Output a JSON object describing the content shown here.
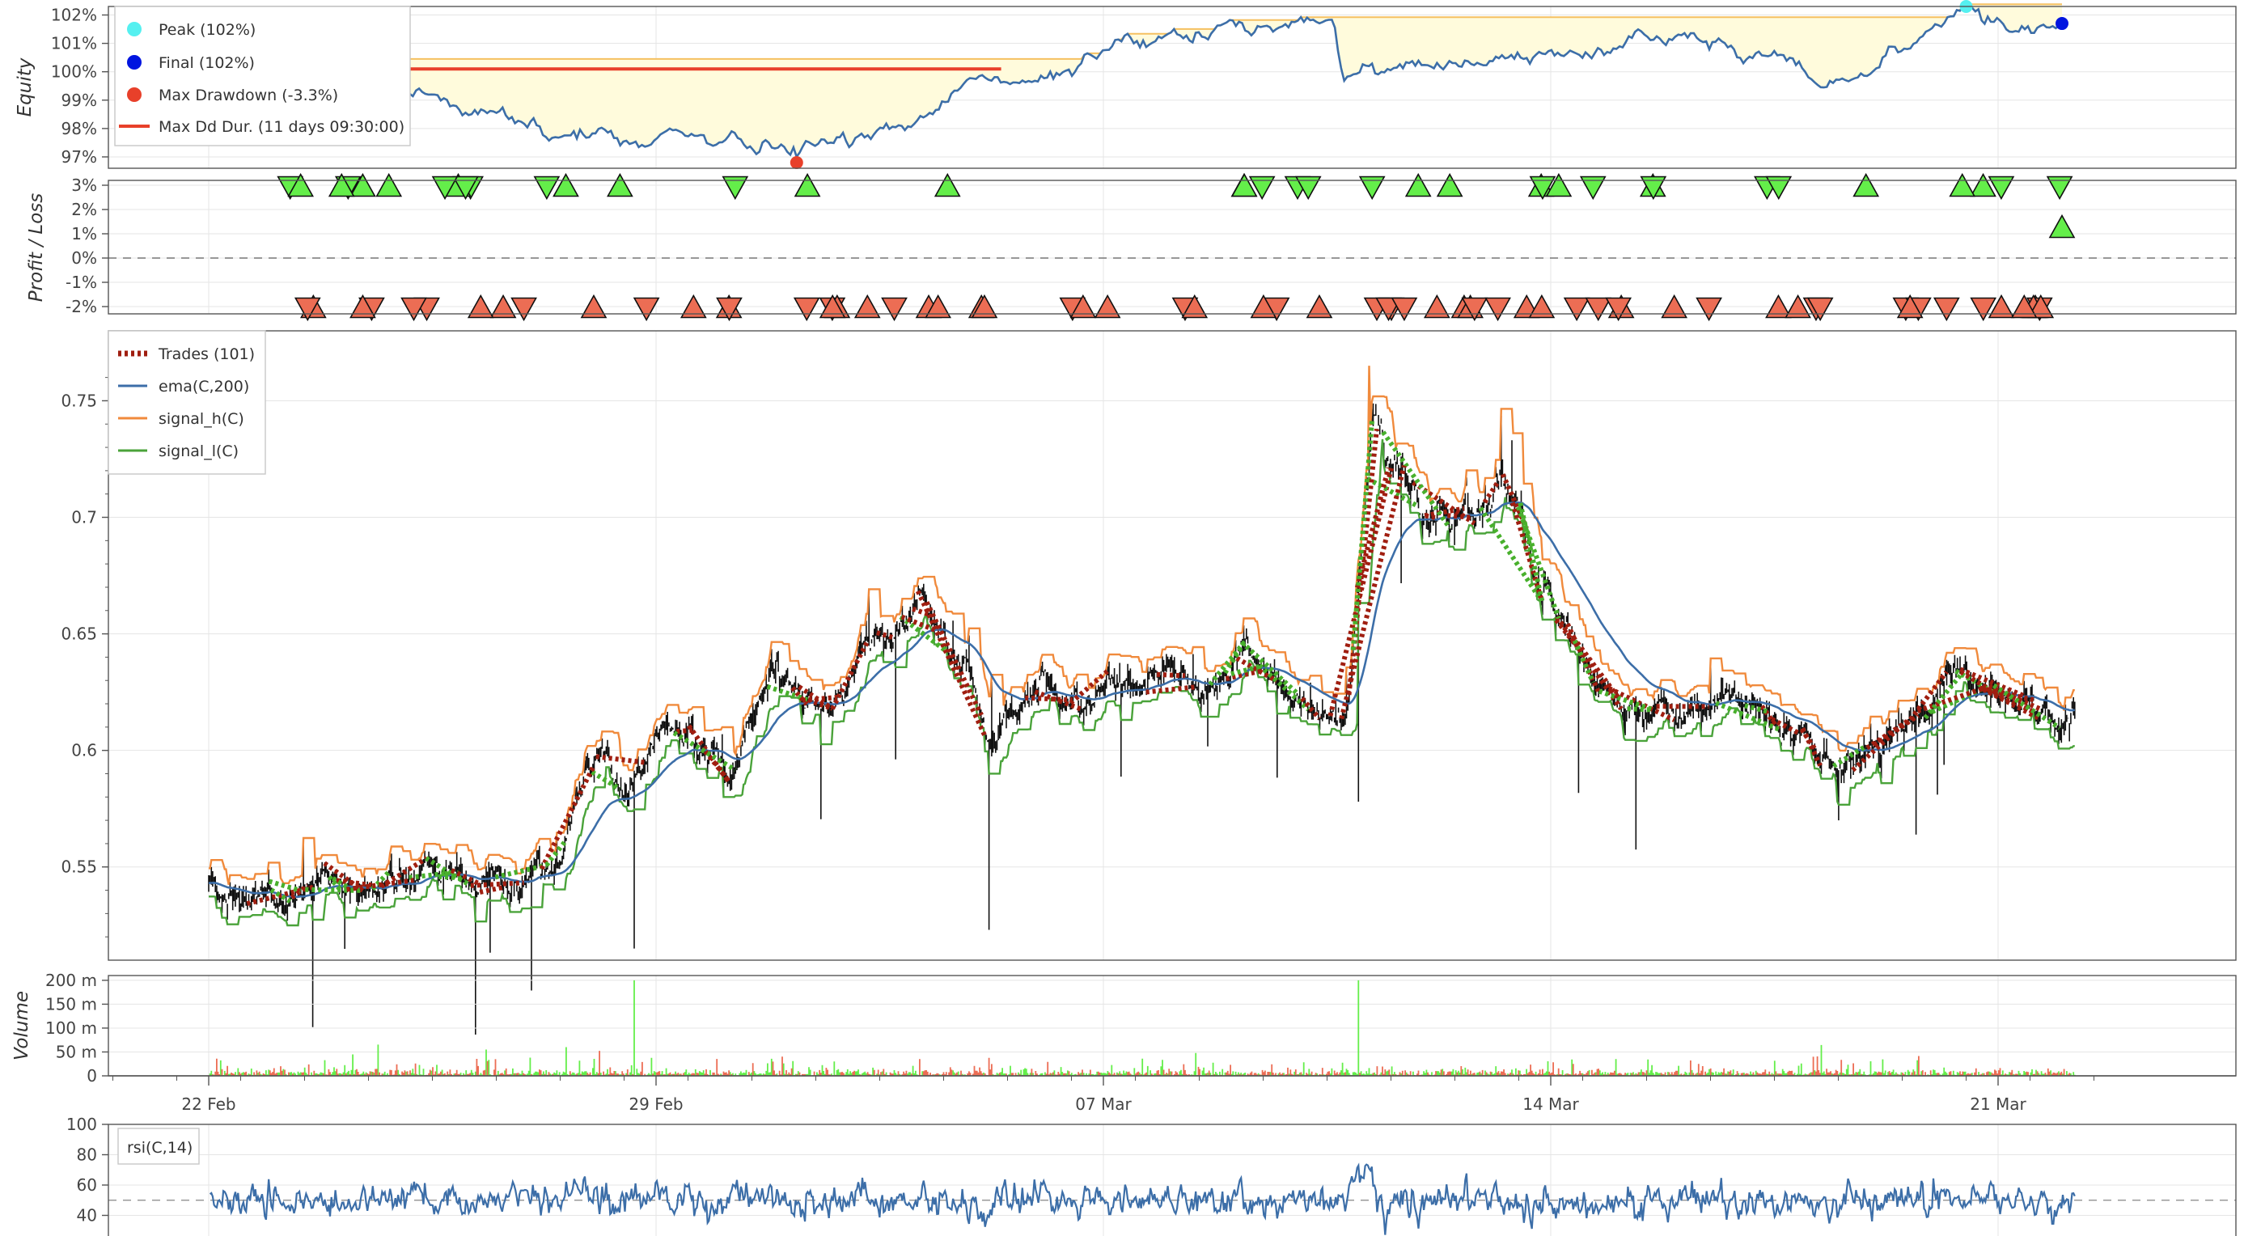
{
  "colors": {
    "equity": "#3c6ea8",
    "peak": "#55f0f0",
    "final": "#0015e0",
    "drawdown": "#e8402a",
    "ddfill": "#fffbdc",
    "ddline": "#f5c060",
    "win": "#64ee4a",
    "loss": "#ec6d54",
    "ema": "#3c6ea8",
    "signal_h": "#f08a3c",
    "signal_l": "#4aa33a",
    "trade_loss": "#a01e10",
    "trade_win": "#48b02c",
    "rsi": "#3c6ea8"
  },
  "x_axis": {
    "ticks": [
      "22 Feb",
      "29 Feb",
      "07 Mar",
      "14 Mar",
      "21 Mar"
    ]
  },
  "panels": {
    "equity": {
      "label": "Equity",
      "ticks": [
        "102%",
        "101%",
        "100%",
        "99%",
        "98%",
        "97%"
      ],
      "legend": [
        "Peak (102%)",
        "Final (102%)",
        "Max Drawdown (-3.3%)",
        "Max Dd Dur. (11 days 09:30:00)"
      ]
    },
    "pl": {
      "label": "Profit / Loss",
      "ticks": [
        "3%",
        "2%",
        "1%",
        "0%",
        "-1%",
        "-2%"
      ]
    },
    "price": {
      "ticks": [
        "0.75",
        "0.7",
        "0.65",
        "0.6",
        "0.55"
      ],
      "legend": [
        "Trades (101)",
        "ema(C,200)",
        "signal_h(C)",
        "signal_l(C)"
      ]
    },
    "volume": {
      "label": "Volume",
      "ticks": [
        "200 m",
        "150 m",
        "100 m",
        "50 m",
        "0"
      ]
    },
    "rsi": {
      "legend": "rsi(C,14)",
      "ticks": [
        "100",
        "80",
        "60",
        "40",
        "20"
      ]
    }
  },
  "chart_data": [
    {
      "type": "line",
      "title": "Equity",
      "ylabel": "Equity",
      "ylim": [
        96.6,
        102.3
      ],
      "x_range": [
        "22 Feb",
        "23 Mar"
      ],
      "key_points": [
        {
          "label": "Peak",
          "x": "22 Mar",
          "y": 102.3
        },
        {
          "label": "Final",
          "x": "23 Mar",
          "y": 101.7
        },
        {
          "label": "Max Drawdown",
          "x": "2 Mar",
          "y": 96.8
        }
      ],
      "max_drawdown_pct": -3.3,
      "max_drawdown_duration": "11 days 09:30:00"
    },
    {
      "type": "scatter",
      "title": "Profit / Loss",
      "ylabel": "Profit / Loss",
      "ylim": [
        -2.3,
        3.2
      ],
      "trades_count": 101
    },
    {
      "type": "line",
      "title": "Price",
      "ylim": [
        0.51,
        0.78
      ],
      "series": [
        {
          "name": "ema(C,200)"
        },
        {
          "name": "signal_h(C)"
        },
        {
          "name": "signal_l(C)"
        }
      ],
      "anchors": [
        {
          "x": 0.0,
          "y": 0.545
        },
        {
          "x": 1.2,
          "y": 0.537
        },
        {
          "x": 2.0,
          "y": 0.543
        },
        {
          "x": 4.0,
          "y": 0.545
        },
        {
          "x": 4.8,
          "y": 0.538
        },
        {
          "x": 5.5,
          "y": 0.553
        },
        {
          "x": 5.9,
          "y": 0.593
        },
        {
          "x": 6.6,
          "y": 0.583
        },
        {
          "x": 7.1,
          "y": 0.61
        },
        {
          "x": 7.6,
          "y": 0.591
        },
        {
          "x": 8.3,
          "y": 0.594
        },
        {
          "x": 8.8,
          "y": 0.638
        },
        {
          "x": 9.9,
          "y": 0.628
        },
        {
          "x": 10.3,
          "y": 0.64
        },
        {
          "x": 11.2,
          "y": 0.66
        },
        {
          "x": 11.5,
          "y": 0.65
        },
        {
          "x": 12.3,
          "y": 0.61
        },
        {
          "x": 13.2,
          "y": 0.622
        },
        {
          "x": 14.5,
          "y": 0.626
        },
        {
          "x": 16.2,
          "y": 0.626
        },
        {
          "x": 17.8,
          "y": 0.612
        },
        {
          "x": 18.2,
          "y": 0.742
        },
        {
          "x": 19.0,
          "y": 0.7
        },
        {
          "x": 20.5,
          "y": 0.69
        },
        {
          "x": 21.8,
          "y": 0.63
        },
        {
          "x": 22.5,
          "y": 0.615
        },
        {
          "x": 23.8,
          "y": 0.625
        },
        {
          "x": 24.8,
          "y": 0.602
        },
        {
          "x": 25.6,
          "y": 0.59
        },
        {
          "x": 26.5,
          "y": 0.612
        },
        {
          "x": 27.2,
          "y": 0.64
        },
        {
          "x": 27.9,
          "y": 0.625
        },
        {
          "x": 28.7,
          "y": 0.612
        },
        {
          "x": 29.2,
          "y": 0.617
        }
      ]
    },
    {
      "type": "bar",
      "title": "Volume",
      "ylabel": "Volume",
      "ylim": [
        0,
        210000000
      ],
      "notable_spikes": [
        {
          "x": "28 Feb",
          "value": 200000000
        },
        {
          "x": "11 Mar",
          "value": 200000000
        }
      ]
    },
    {
      "type": "line",
      "title": "rsi(C,14)",
      "ylim": [
        20,
        100
      ],
      "series": [
        {
          "name": "rsi(C,14)"
        }
      ],
      "reference_line": 50
    }
  ]
}
